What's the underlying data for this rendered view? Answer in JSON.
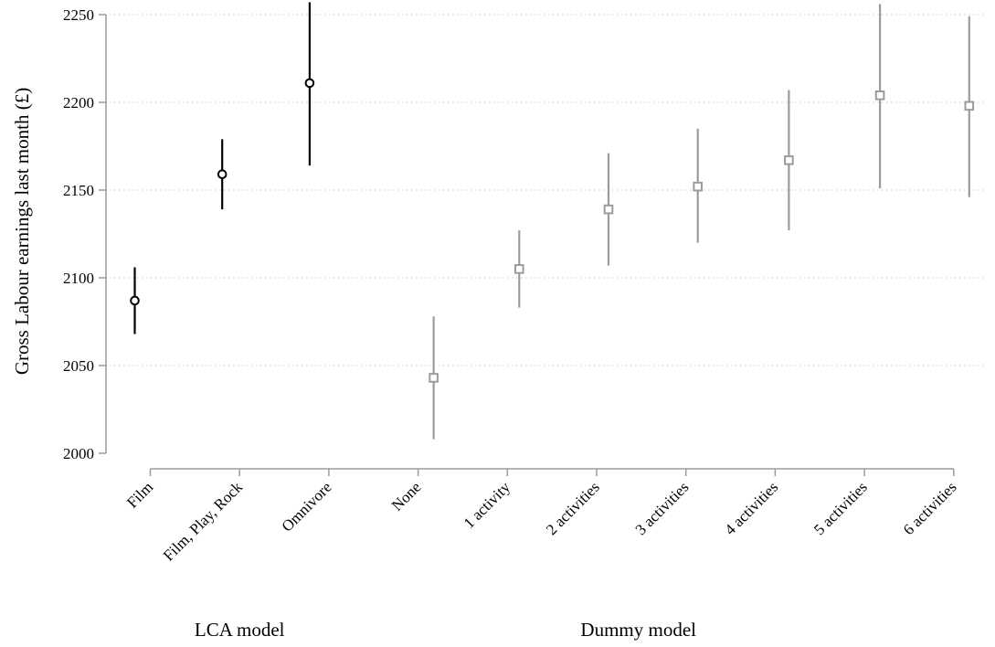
{
  "chart_data": {
    "type": "scatter",
    "ylabel": "Gross Labour earnings last month (£)",
    "ylim": [
      2000,
      2250
    ],
    "yticks": [
      2000,
      2050,
      2100,
      2150,
      2200,
      2250
    ],
    "grid": true,
    "categories": [
      "Film",
      "Film, Play, Rock",
      "Omnivore",
      "None",
      "1 activity",
      "2 activities",
      "3 activities",
      "4 activities",
      "5 activities",
      "6 activities"
    ],
    "groups": [
      {
        "label": "LCA model",
        "categories": [
          "Film",
          "Film, Play, Rock",
          "Omnivore"
        ]
      },
      {
        "label": "Dummy model",
        "categories": [
          "None",
          "1 activity",
          "2 activities",
          "3 activities",
          "4 activities",
          "5 activities",
          "6 activities"
        ]
      }
    ],
    "series": [
      {
        "marker": "circle",
        "color": "#000000",
        "points": [
          {
            "category": "Film",
            "value": 2087,
            "low": 2068,
            "high": 2106
          },
          {
            "category": "Film, Play, Rock",
            "value": 2159,
            "low": 2139,
            "high": 2179
          },
          {
            "category": "Omnivore",
            "value": 2211,
            "low": 2164,
            "high": 2257
          }
        ]
      },
      {
        "marker": "square",
        "color": "#9b9b9b",
        "points": [
          {
            "category": "None",
            "value": 2043,
            "low": 2008,
            "high": 2078
          },
          {
            "category": "1 activity",
            "value": 2105,
            "low": 2083,
            "high": 2127
          },
          {
            "category": "2 activities",
            "value": 2139,
            "low": 2107,
            "high": 2171
          },
          {
            "category": "3 activities",
            "value": 2152,
            "low": 2120,
            "high": 2185
          },
          {
            "category": "4 activities",
            "value": 2167,
            "low": 2127,
            "high": 2207
          },
          {
            "category": "5 activities",
            "value": 2204,
            "low": 2151,
            "high": 2256
          },
          {
            "category": "6 activities",
            "value": 2198,
            "low": 2146,
            "high": 2249
          }
        ]
      }
    ]
  }
}
